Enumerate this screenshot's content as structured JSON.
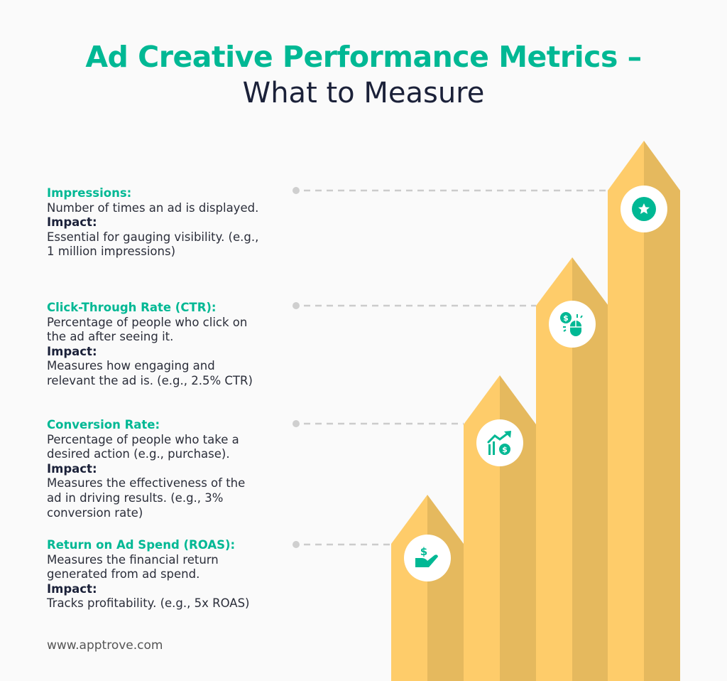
{
  "title": {
    "line1": "Ad Creative Performance Metrics –",
    "line2": "What to Measure"
  },
  "colors": {
    "accent": "#00b894",
    "arrow_light": "#fecc6a",
    "arrow_dark": "#e5b95e",
    "connector": "#cccccc"
  },
  "metrics": [
    {
      "name": "Impressions:",
      "desc": [
        "Number of times an ad is displayed."
      ],
      "impact_label": "Impact:",
      "impact": [
        "Essential for gauging visibility. (e.g.,",
        "1 million impressions)"
      ],
      "icon": "star-badge-icon"
    },
    {
      "name": "Click-Through Rate (CTR):",
      "desc": [
        "Percentage of people who click on",
        "the ad after seeing it."
      ],
      "impact_label": "Impact:",
      "impact": [
        "Measures how engaging and",
        "relevant the ad is. (e.g., 2.5% CTR)"
      ],
      "icon": "dollar-mouse-click-icon"
    },
    {
      "name": "Conversion Rate:",
      "desc": [
        "Percentage of people who take a",
        "desired action (e.g., purchase)."
      ],
      "impact_label": "Impact:",
      "impact": [
        "Measures the effectiveness of the",
        "ad in driving results. (e.g., 3%",
        "conversion rate)"
      ],
      "icon": "growth-chart-dollar-icon"
    },
    {
      "name": "Return on Ad Spend (ROAS):",
      "desc": [
        "Measures the financial return",
        "generated from ad spend."
      ],
      "impact_label": "Impact:",
      "impact": [
        "Tracks profitability. (e.g., 5x ROAS)"
      ],
      "icon": "hand-dollar-icon"
    }
  ],
  "footer": {
    "url": "www.apptrove.com"
  }
}
